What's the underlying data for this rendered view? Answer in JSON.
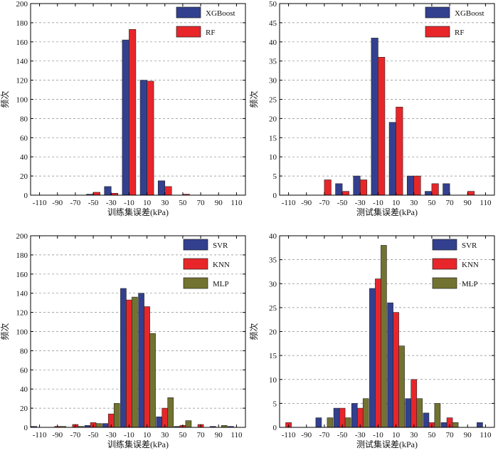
{
  "chart_data": [
    {
      "type": "bar",
      "ylabel": "频次",
      "xlabel": "训练集误差(kPa)",
      "ylim": [
        0,
        200
      ],
      "yticks": [
        0,
        20,
        40,
        60,
        80,
        100,
        120,
        140,
        160,
        180,
        200
      ],
      "categories": [
        "-110",
        "-90",
        "-70",
        "-50",
        "-30",
        "-10",
        "10",
        "30",
        "50",
        "70",
        "90",
        "110"
      ],
      "grid": true,
      "legend_position": "top-right",
      "series": [
        {
          "name": "XGBoost",
          "color": "#33408f",
          "values": [
            0,
            0,
            0,
            1,
            9,
            162,
            120,
            15,
            0,
            0,
            0,
            0
          ]
        },
        {
          "name": "RF",
          "color": "#e8262a",
          "values": [
            0,
            0,
            0,
            3,
            2,
            173,
            119,
            9,
            1,
            0,
            0,
            0
          ]
        }
      ]
    },
    {
      "type": "bar",
      "ylabel": "频次",
      "xlabel": "测试集误差(kPa)",
      "ylim": [
        0,
        50
      ],
      "yticks": [
        0,
        5,
        10,
        15,
        20,
        25,
        30,
        35,
        40,
        45,
        50
      ],
      "categories": [
        "-110",
        "-90",
        "-70",
        "-50",
        "-30",
        "-10",
        "10",
        "30",
        "50",
        "70",
        "90",
        "110"
      ],
      "grid": true,
      "legend_position": "top-right",
      "series": [
        {
          "name": "XGBoost",
          "color": "#33408f",
          "values": [
            0,
            0,
            0,
            3,
            5,
            41,
            19,
            5,
            1,
            3,
            0,
            0
          ]
        },
        {
          "name": "RF",
          "color": "#e8262a",
          "values": [
            0,
            0,
            4,
            1,
            4,
            36,
            23,
            5,
            3,
            0,
            1,
            0
          ]
        }
      ]
    },
    {
      "type": "bar",
      "ylabel": "频次",
      "xlabel": "训练集误差(kPa)",
      "ylim": [
        0,
        200
      ],
      "yticks": [
        0,
        20,
        40,
        60,
        80,
        100,
        120,
        140,
        160,
        180,
        200
      ],
      "categories": [
        "-110",
        "-90",
        "-70",
        "-50",
        "-30",
        "-10",
        "10",
        "30",
        "50",
        "70",
        "90",
        "110"
      ],
      "grid": true,
      "legend_position": "top-right",
      "series": [
        {
          "name": "SVR",
          "color": "#33408f",
          "values": [
            1,
            0,
            0,
            2,
            4,
            145,
            140,
            11,
            1,
            0,
            1,
            1
          ]
        },
        {
          "name": "KNN",
          "color": "#e8262a",
          "values": [
            0,
            1,
            3,
            5,
            14,
            133,
            126,
            20,
            2,
            3,
            0,
            0
          ]
        },
        {
          "name": "MLP",
          "color": "#737331",
          "values": [
            0,
            1,
            1,
            4,
            25,
            136,
            98,
            31,
            7,
            0,
            2,
            0
          ]
        }
      ]
    },
    {
      "type": "bar",
      "ylabel": "频次",
      "xlabel": "测试集误差(kPa)",
      "ylim": [
        0,
        40
      ],
      "yticks": [
        0,
        5,
        10,
        15,
        20,
        25,
        30,
        35,
        40
      ],
      "categories": [
        "-110",
        "-90",
        "-70",
        "-50",
        "-30",
        "-10",
        "10",
        "30",
        "50",
        "70",
        "90",
        "110"
      ],
      "grid": true,
      "legend_position": "top-right",
      "series": [
        {
          "name": "SVR",
          "color": "#33408f",
          "values": [
            0,
            0,
            2,
            4,
            5,
            29,
            26,
            6,
            3,
            1,
            0,
            1
          ]
        },
        {
          "name": "KNN",
          "color": "#e8262a",
          "values": [
            1,
            0,
            0,
            4,
            4,
            31,
            24,
            10,
            1,
            2,
            0,
            0
          ]
        },
        {
          "name": "MLP",
          "color": "#737331",
          "values": [
            0,
            0,
            2,
            2,
            6,
            38,
            17,
            6,
            5,
            1,
            0,
            0
          ]
        }
      ]
    }
  ]
}
